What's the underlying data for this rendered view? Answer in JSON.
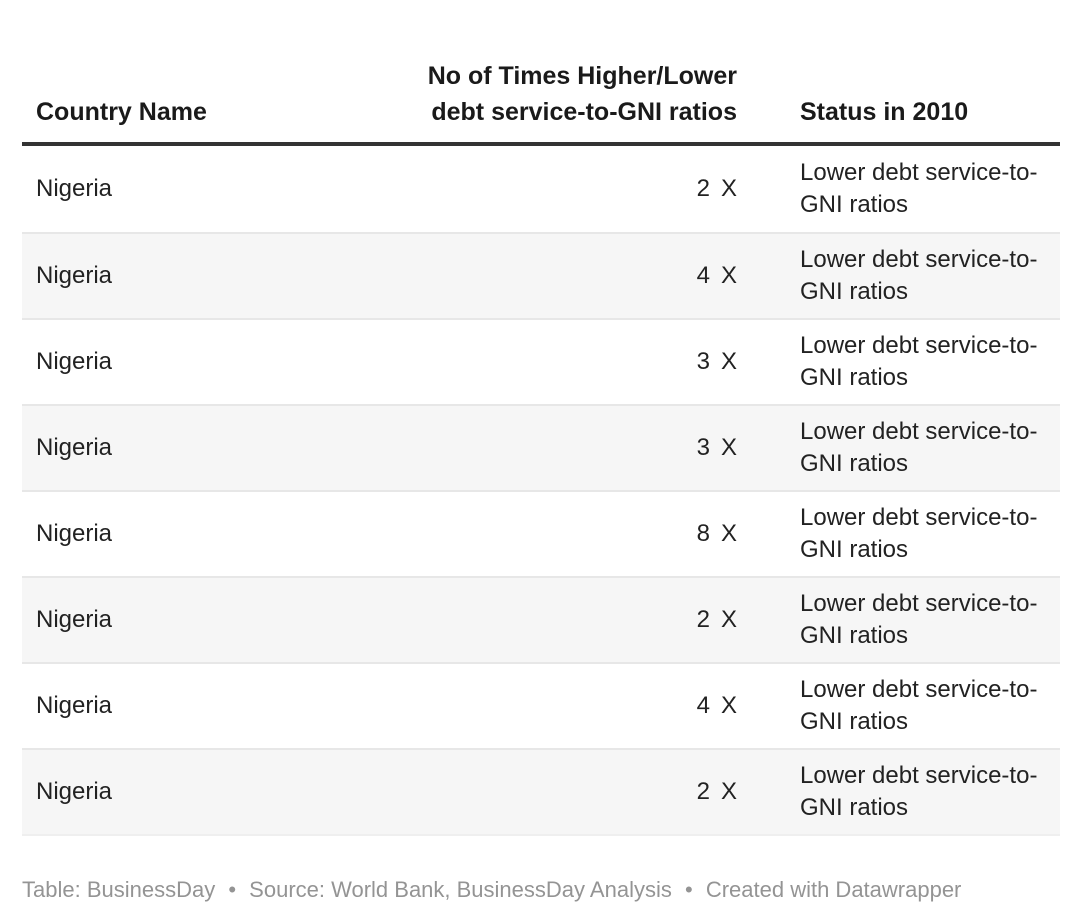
{
  "colors": {
    "background": "#ffffff",
    "header_text": "#1a1a1a",
    "body_text": "#222222",
    "header_rule": "#333333",
    "row_stripe": "#f6f6f6",
    "row_divider": "#e7e7e7",
    "footer_text": "#949494"
  },
  "table": {
    "header": {
      "country": "Country Name",
      "times_line1": "No of Times Higher/Lower",
      "times_line2": "debt service-to-GNI ratios",
      "status": "Status in 2010"
    },
    "rows": [
      {
        "country": "Nigeria",
        "times": "2",
        "unit": "X",
        "status": "Lower debt service-to-GNI ratios"
      },
      {
        "country": "Nigeria",
        "times": "4",
        "unit": "X",
        "status": "Lower debt service-to-GNI ratios"
      },
      {
        "country": "Nigeria",
        "times": "3",
        "unit": "X",
        "status": "Lower debt service-to-GNI ratios"
      },
      {
        "country": "Nigeria",
        "times": "3",
        "unit": "X",
        "status": "Lower debt service-to-GNI ratios"
      },
      {
        "country": "Nigeria",
        "times": "8",
        "unit": "X",
        "status": "Lower debt service-to-GNI ratios"
      },
      {
        "country": "Nigeria",
        "times": "2",
        "unit": "X",
        "status": "Lower debt service-to-GNI ratios"
      },
      {
        "country": "Nigeria",
        "times": "4",
        "unit": "X",
        "status": "Lower debt service-to-GNI ratios"
      },
      {
        "country": "Nigeria",
        "times": "2",
        "unit": "X",
        "status": "Lower debt service-to-GNI ratios"
      }
    ]
  },
  "footer": {
    "table_credit": "Table: BusinessDay",
    "separator": "•",
    "source": "Source: World Bank, BusinessDay Analysis",
    "created": "Created with Datawrapper"
  },
  "chart_data": {
    "type": "table",
    "title": "",
    "columns": [
      "Country Name",
      "No of Times Higher/Lower debt service-to-GNI ratios",
      "Status in 2010"
    ],
    "rows": [
      [
        "Nigeria",
        "2 X",
        "Lower debt service-to-GNI ratios"
      ],
      [
        "Nigeria",
        "4 X",
        "Lower debt service-to-GNI ratios"
      ],
      [
        "Nigeria",
        "3 X",
        "Lower debt service-to-GNI ratios"
      ],
      [
        "Nigeria",
        "3 X",
        "Lower debt service-to-GNI ratios"
      ],
      [
        "Nigeria",
        "8 X",
        "Lower debt service-to-GNI ratios"
      ],
      [
        "Nigeria",
        "2 X",
        "Lower debt service-to-GNI ratios"
      ],
      [
        "Nigeria",
        "4 X",
        "Lower debt service-to-GNI ratios"
      ],
      [
        "Nigeria",
        "2 X",
        "Lower debt service-to-GNI ratios"
      ]
    ],
    "times_values": [
      2,
      4,
      3,
      3,
      8,
      2,
      4,
      2
    ],
    "table_credit": "Table: BusinessDay",
    "source": "Source: World Bank, BusinessDay Analysis",
    "created_with": "Created with Datawrapper",
    "layout_hints": {
      "striped_rows": true,
      "numeric_column_align": "right",
      "header_rule": true
    }
  }
}
